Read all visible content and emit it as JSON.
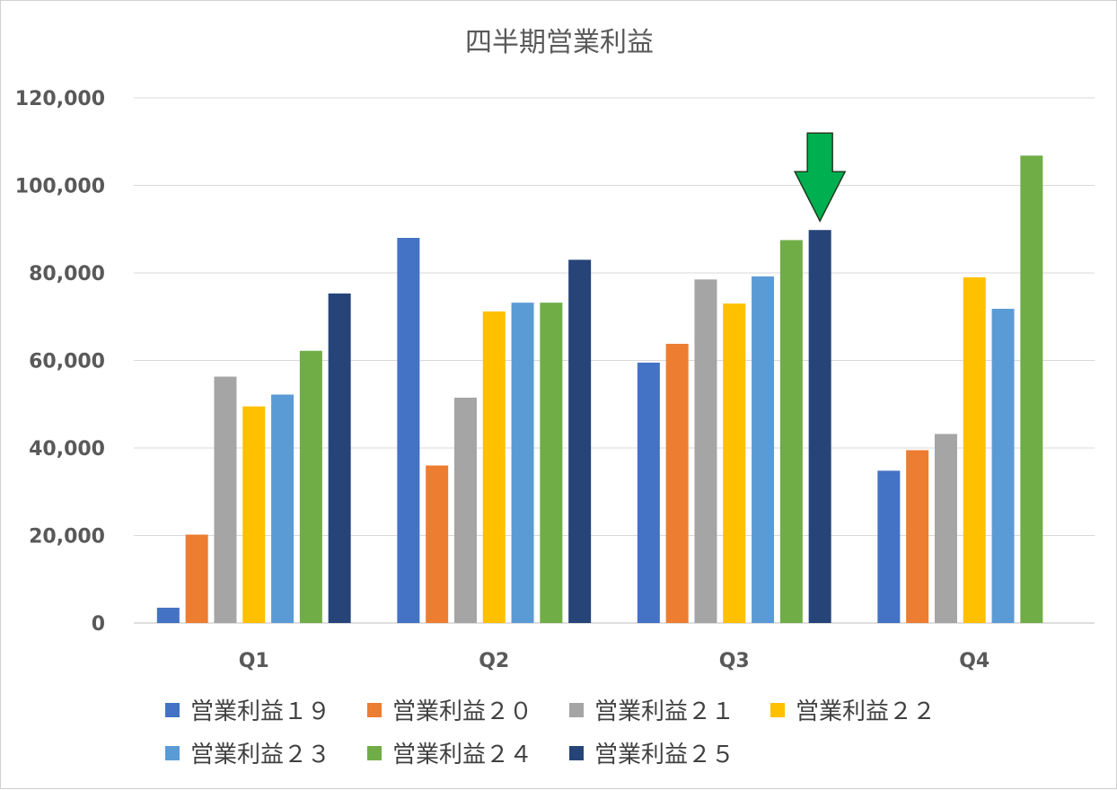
{
  "chart_data": {
    "type": "bar",
    "title": "四半期営業利益",
    "xlabel": "",
    "ylabel": "",
    "categories": [
      "Q1",
      "Q2",
      "Q3",
      "Q4"
    ],
    "ylim": [
      0,
      120000
    ],
    "yticks": [
      0,
      20000,
      40000,
      60000,
      80000,
      100000,
      120000
    ],
    "ytick_labels": [
      "0",
      "20,000",
      "40,000",
      "60,000",
      "80,000",
      "100,000",
      "120,000"
    ],
    "grid": true,
    "legend_position": "bottom",
    "series": [
      {
        "name": "営業利益１９",
        "color": "#4472C4",
        "values": [
          3500,
          88000,
          59500,
          34800
        ]
      },
      {
        "name": "営業利益２０",
        "color": "#ED7D31",
        "values": [
          20200,
          36000,
          63800,
          39500
        ]
      },
      {
        "name": "営業利益２１",
        "color": "#A5A5A5",
        "values": [
          56300,
          51500,
          78500,
          43200
        ]
      },
      {
        "name": "営業利益２２",
        "color": "#FFC000",
        "values": [
          49500,
          71200,
          73000,
          79000
        ]
      },
      {
        "name": "営業利益２３",
        "color": "#5B9BD5",
        "values": [
          52200,
          73200,
          79200,
          71800
        ]
      },
      {
        "name": "営業利益２４",
        "color": "#70AD47",
        "values": [
          62200,
          73200,
          87500,
          106800
        ]
      },
      {
        "name": "営業利益２５",
        "color": "#264478",
        "values": [
          75300,
          83000,
          89800,
          null
        ]
      }
    ],
    "annotation": {
      "type": "arrow-down",
      "color": "#00B050",
      "category": "Q3",
      "series": "営業利益２５"
    }
  }
}
